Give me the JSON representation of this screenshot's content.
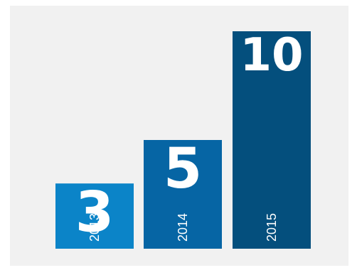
{
  "chart_data": {
    "type": "bar",
    "categories": [
      "2013",
      "2014",
      "2015"
    ],
    "values": [
      3,
      5,
      10
    ],
    "colors": [
      "#0b84c8",
      "#0665a4",
      "#044f7d"
    ],
    "title": "",
    "xlabel": "",
    "ylabel": "",
    "grid": false,
    "legend": "none"
  }
}
